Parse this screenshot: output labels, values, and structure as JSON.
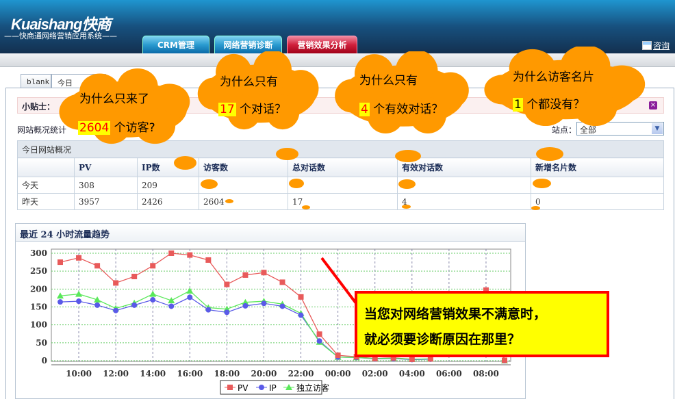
{
  "header": {
    "logo": "Kuaishang快商",
    "subtitle": "——快商通网络营销应用系统——",
    "tabs": [
      {
        "label": "CRM管理"
      },
      {
        "label": "网络营销诊断"
      },
      {
        "label": "营销效果分析",
        "active": true
      }
    ],
    "consult": "咨询",
    "consult_icon": "edit-icon"
  },
  "subtabs": [
    {
      "label": "blank"
    },
    {
      "label": "今日"
    }
  ],
  "tips": {
    "label": "小贴士：",
    "close_icon": "close-icon"
  },
  "stats": {
    "label": "网站概况统计",
    "site_label": "站点：",
    "site_value": "全部"
  },
  "table": {
    "title": "今日网站概况",
    "columns": [
      "",
      "PV",
      "IP数",
      "访客数",
      "总对话数",
      "有效对话数",
      "新增名片数"
    ],
    "rows": [
      [
        "今天",
        "308",
        "209",
        "",
        "",
        "",
        ""
      ],
      [
        "昨天",
        "3957",
        "2426",
        "2604",
        "17",
        "4",
        "0"
      ]
    ]
  },
  "clouds": [
    {
      "line1": "为什么只来了",
      "num": "2604",
      "line2": "个访客?"
    },
    {
      "line1": "为什么只有",
      "num": "17",
      "line2": "个对话？"
    },
    {
      "line1": "为什么只有",
      "num": "4",
      "line2": "个有效对话？"
    },
    {
      "line1": "为什么访客名片",
      "num": "1",
      "line2": "个都没有？"
    }
  ],
  "callout": {
    "line1": "当您对网络营销效果不满意时，",
    "line2": "就必须要诊断原因在那里？"
  },
  "colors": {
    "accent_orange": "#ff9900",
    "pv": "#e85a5a",
    "ip": "#5a5ae8",
    "uv": "#5ae85a"
  },
  "chart_data": {
    "type": "line",
    "title": "最近  24 小时流量趋势",
    "x": [
      "09:00",
      "10:00",
      "11:00",
      "12:00",
      "13:00",
      "14:00",
      "15:00",
      "16:00",
      "17:00",
      "18:00",
      "19:00",
      "20:00",
      "21:00",
      "22:00",
      "23:00",
      "00:00",
      "01:00",
      "02:00",
      "03:00",
      "04:00",
      "05:00",
      "06:00",
      "07:00",
      "08:00",
      "09:00"
    ],
    "xticks": [
      "10:00",
      "12:00",
      "14:00",
      "16:00",
      "18:00",
      "20:00",
      "22:00",
      "00:00",
      "02:00",
      "04:00",
      "06:00",
      "08:00"
    ],
    "yticks": [
      0,
      50,
      100,
      150,
      200,
      250,
      300
    ],
    "ylim": [
      0,
      315
    ],
    "grid": true,
    "legend": "bottom",
    "series": [
      {
        "name": "PV",
        "values": [
          275,
          287,
          265,
          217,
          235,
          265,
          300,
          295,
          281,
          213,
          239,
          246,
          219,
          178,
          74,
          15,
          11,
          6,
          8,
          4,
          5,
          null,
          null,
          197,
          1
        ]
      },
      {
        "name": "IP",
        "values": [
          164,
          166,
          155,
          140,
          155,
          170,
          152,
          177,
          142,
          135,
          153,
          160,
          152,
          127,
          55,
          10,
          9,
          5,
          6,
          3,
          4,
          null,
          null,
          null,
          0
        ]
      },
      {
        "name": "独立访客",
        "values": [
          181,
          186,
          170,
          146,
          161,
          186,
          168,
          195,
          148,
          144,
          163,
          166,
          158,
          132,
          52,
          10,
          9,
          6,
          7,
          4,
          5,
          null,
          null,
          null,
          0
        ]
      }
    ]
  }
}
